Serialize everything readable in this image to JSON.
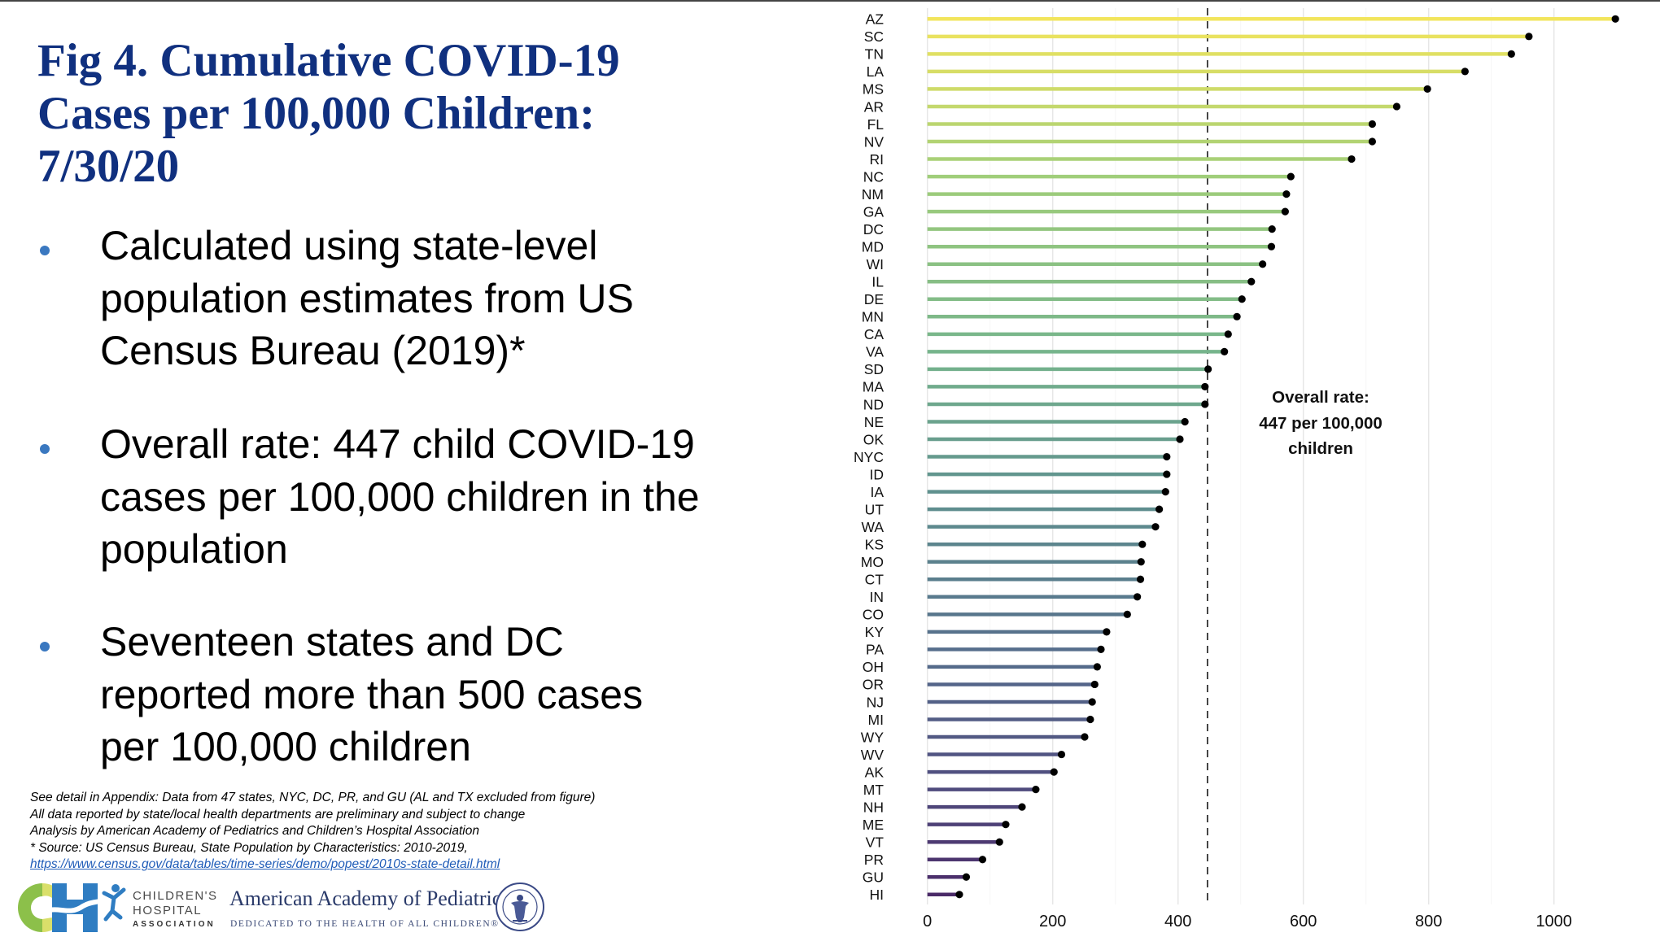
{
  "slide": {
    "title_lines": [
      "Fig 4. Cumulative COVID-19",
      "Cases per 100,000 Children:",
      "7/30/20"
    ],
    "bullets": [
      {
        "lines": [
          "Calculated using state-level",
          "population estimates from US",
          "Census Bureau (2019)*"
        ]
      },
      {
        "lines": [
          "Overall rate: 447 child COVID-19",
          "cases per 100,000 children in the",
          "population"
        ]
      },
      {
        "lines": [
          "Seventeen states and DC",
          "reported more than 500 cases",
          "per 100,000 children"
        ]
      }
    ],
    "bullet_color": "#3a78c0",
    "title_color": "#10307f",
    "footnotes": [
      "See detail in Appendix: Data from 47 states, NYC, DC, PR, and GU (AL and TX excluded from figure)",
      "All data reported by state/local health departments are preliminary and subject to change",
      "Analysis by American Academy of Pediatrics and Children’s Hospital Association",
      "* Source: US Census Bureau, State Population by Characteristics: 2010-2019,"
    ],
    "source_link": "https://www.census.gov/data/tables/time-series/demo/popest/2010s-state-detail.html",
    "logos": {
      "cha_lines": [
        "CHILDREN'S",
        "HOSPITAL",
        "ASSOCIATION"
      ],
      "aap_name": "American Academy of Pediatrics",
      "aap_tagline": "DEDICATED TO THE HEALTH OF ALL CHILDREN®"
    }
  },
  "chart_data": {
    "type": "lollipop",
    "orientation": "horizontal",
    "title": "Cumulative COVID-19 Cases per 100,000 Children: 7/30/20",
    "xlabel": "",
    "ylabel": "",
    "xlim": [
      0,
      1100
    ],
    "xticks": [
      0,
      200,
      400,
      600,
      800,
      1000
    ],
    "grid": "vertical",
    "reference_line": {
      "value": 447,
      "style": "dashed"
    },
    "annotation": [
      "Overall rate:",
      "447 per 100,000",
      "children"
    ],
    "color_scale": "yellow-to-purple (high to low)",
    "categories": [
      "AZ",
      "SC",
      "TN",
      "LA",
      "MS",
      "AR",
      "FL",
      "NV",
      "RI",
      "NC",
      "NM",
      "GA",
      "DC",
      "MD",
      "WI",
      "IL",
      "DE",
      "MN",
      "CA",
      "VA",
      "SD",
      "MA",
      "ND",
      "NE",
      "OK",
      "NYC",
      "ID",
      "IA",
      "UT",
      "WA",
      "KS",
      "MO",
      "CT",
      "IN",
      "CO",
      "KY",
      "PA",
      "OH",
      "OR",
      "NJ",
      "MI",
      "WY",
      "WV",
      "AK",
      "MT",
      "NH",
      "ME",
      "VT",
      "PR",
      "GU",
      "HI"
    ],
    "values": [
      1098,
      960,
      932,
      858,
      798,
      749,
      710,
      710,
      677,
      580,
      573,
      571,
      550,
      549,
      535,
      517,
      502,
      494,
      480,
      474,
      448,
      443,
      443,
      411,
      403,
      382,
      382,
      380,
      370,
      364,
      343,
      341,
      340,
      335,
      319,
      286,
      277,
      271,
      267,
      263,
      260,
      251,
      214,
      202,
      173,
      151,
      125,
      115,
      88,
      62,
      51
    ]
  }
}
